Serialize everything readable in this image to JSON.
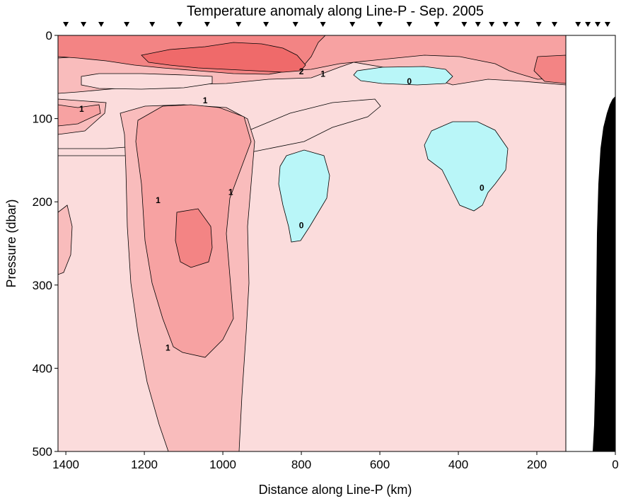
{
  "chart_data": {
    "type": "heatmap",
    "title": "Temperature anomaly along Line-P - Sep. 2005",
    "xlabel": "Distance along Line-P (km)",
    "ylabel": "Pressure (dbar)",
    "xlim": [
      1420,
      0
    ],
    "ylim": [
      500,
      0
    ],
    "x_ticks": [
      1400,
      1200,
      1000,
      800,
      600,
      400,
      200,
      0
    ],
    "y_ticks": [
      0,
      100,
      200,
      300,
      400,
      500
    ],
    "station_km": [
      1400,
      1355,
      1310,
      1245,
      1180,
      1110,
      1040,
      960,
      890,
      815,
      745,
      670,
      600,
      525,
      455,
      385,
      350,
      315,
      280,
      250,
      195,
      155,
      95,
      70,
      45,
      20
    ],
    "data_extent_km": 125,
    "contour_levels": [
      0,
      1,
      2
    ],
    "contour_labels": [
      {
        "text": "1",
        "x": 1045,
        "y": 80
      },
      {
        "text": "1",
        "x": 1360,
        "y": 90
      },
      {
        "text": "1",
        "x": 1165,
        "y": 200
      },
      {
        "text": "1",
        "x": 980,
        "y": 190
      },
      {
        "text": "1",
        "x": 1140,
        "y": 377
      },
      {
        "text": "2",
        "x": 800,
        "y": 45
      },
      {
        "text": "1",
        "x": 745,
        "y": 48
      },
      {
        "text": "0",
        "x": 525,
        "y": 57
      },
      {
        "text": "0",
        "x": 800,
        "y": 230
      },
      {
        "text": "0",
        "x": 340,
        "y": 185
      }
    ],
    "colors": {
      "band_0_1": "#fbdcdc",
      "band_1_2": "#f9bcbc",
      "band_2_3": "#f7a2a2",
      "band_3_4": "#f38484",
      "band_4_plus": "#ef6a6a",
      "negative": "#b9f6f8",
      "bathymetry": "#000000"
    }
  }
}
